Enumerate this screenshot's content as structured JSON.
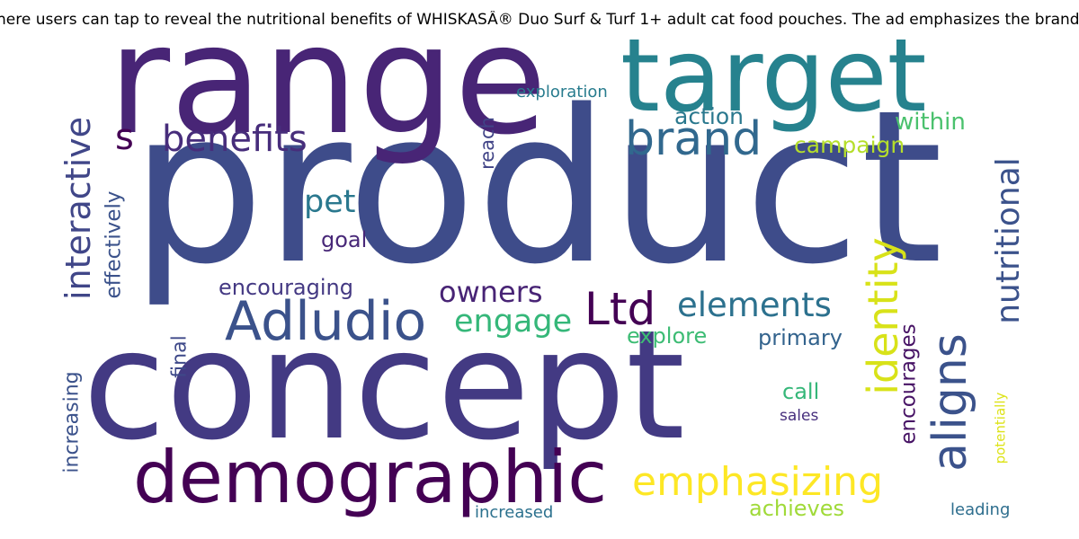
{
  "header": {
    "title": "here users can tap to reveal the nutritional benefits of WHISKASÂ® Duo Surf & Turf 1+ adult cat food pouches. The ad emphasizes the brand's co"
  },
  "words": [
    {
      "text": "product",
      "color": "#3e4c8a"
    },
    {
      "text": "concept",
      "color": "#433a83"
    },
    {
      "text": "range",
      "color": "#482576"
    },
    {
      "text": "target",
      "color": "#26828e"
    },
    {
      "text": "demographic",
      "color": "#440154"
    },
    {
      "text": "Adludio",
      "color": "#3b528b"
    },
    {
      "text": "brand",
      "color": "#31688e"
    },
    {
      "text": "benefits",
      "color": "#472d7b"
    },
    {
      "text": "identity",
      "color": "#d8e219"
    },
    {
      "text": "aligns",
      "color": "#3b528b"
    },
    {
      "text": "nutritional",
      "color": "#3b528b"
    },
    {
      "text": "interactive",
      "color": "#404688"
    },
    {
      "text": "emphasizing",
      "color": "#fde725"
    },
    {
      "text": "Ltd",
      "color": "#440154"
    },
    {
      "text": "elements",
      "color": "#2c718e"
    },
    {
      "text": "engage",
      "color": "#35b779"
    },
    {
      "text": "owners",
      "color": "#482475"
    },
    {
      "text": "pet",
      "color": "#2a788e"
    },
    {
      "text": "s",
      "color": "#440154"
    },
    {
      "text": "campaign",
      "color": "#b5de2b"
    },
    {
      "text": "within",
      "color": "#4ac16d"
    },
    {
      "text": "action",
      "color": "#2a788e"
    },
    {
      "text": "encouraging",
      "color": "#443983"
    },
    {
      "text": "goal",
      "color": "#482878"
    },
    {
      "text": "explore",
      "color": "#3dbc74"
    },
    {
      "text": "primary",
      "color": "#33638d"
    },
    {
      "text": "call",
      "color": "#35b779"
    },
    {
      "text": "encourages",
      "color": "#471365"
    },
    {
      "text": "effectively",
      "color": "#3b528b"
    },
    {
      "text": "reach",
      "color": "#414487"
    },
    {
      "text": "exploration",
      "color": "#287c8e"
    },
    {
      "text": "final",
      "color": "#3e4989"
    },
    {
      "text": "increasing",
      "color": "#3b528b"
    },
    {
      "text": "achieves",
      "color": "#a0da39"
    },
    {
      "text": "increased",
      "color": "#2c718e"
    },
    {
      "text": "sales",
      "color": "#472f7d"
    },
    {
      "text": "potentially",
      "color": "#dde318"
    },
    {
      "text": "leading",
      "color": "#2e6e8e"
    }
  ]
}
